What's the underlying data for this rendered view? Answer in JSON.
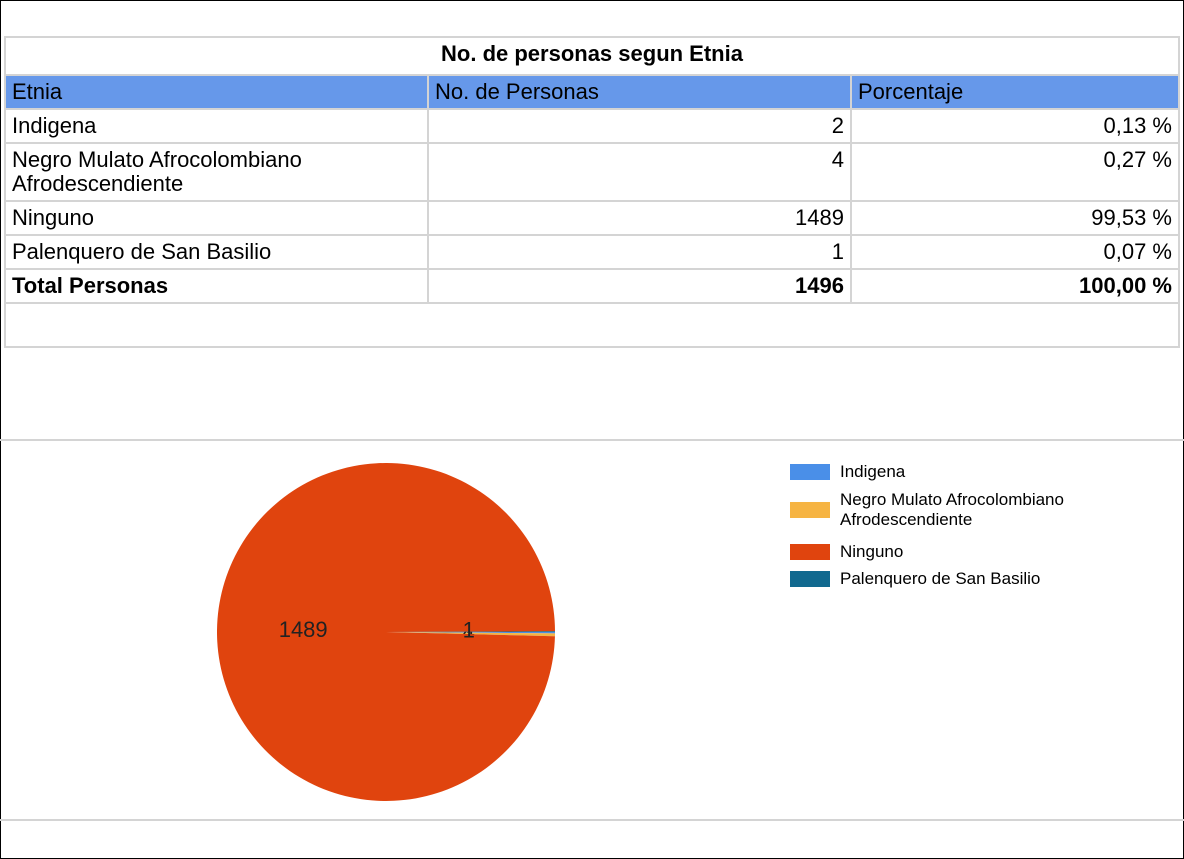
{
  "table": {
    "title": "No. de personas segun Etnia",
    "header": [
      "Etnia",
      "No. de Personas",
      "Porcentaje"
    ],
    "rows": [
      [
        "Indigena",
        "2",
        "0,13 %"
      ],
      [
        "Negro Mulato Afrocolombiano Afrodescendiente",
        "4",
        "0,27 %"
      ],
      [
        "Ninguno",
        "1489",
        "99,53 %"
      ],
      [
        "Palenquero de San Basilio",
        "1",
        "0,07 %"
      ]
    ],
    "total": [
      "Total Personas",
      "1496",
      "100,00 %"
    ]
  },
  "chart_data": {
    "type": "pie",
    "categories": [
      "Indigena",
      "Negro Mulato Afrocolombiano Afrodescendiente",
      "Ninguno",
      "Palenquero de San Basilio"
    ],
    "values": [
      2,
      4,
      1489,
      1
    ],
    "colors": [
      "#4a8fe8",
      "#f6b443",
      "#e0440e",
      "#11698f"
    ]
  }
}
